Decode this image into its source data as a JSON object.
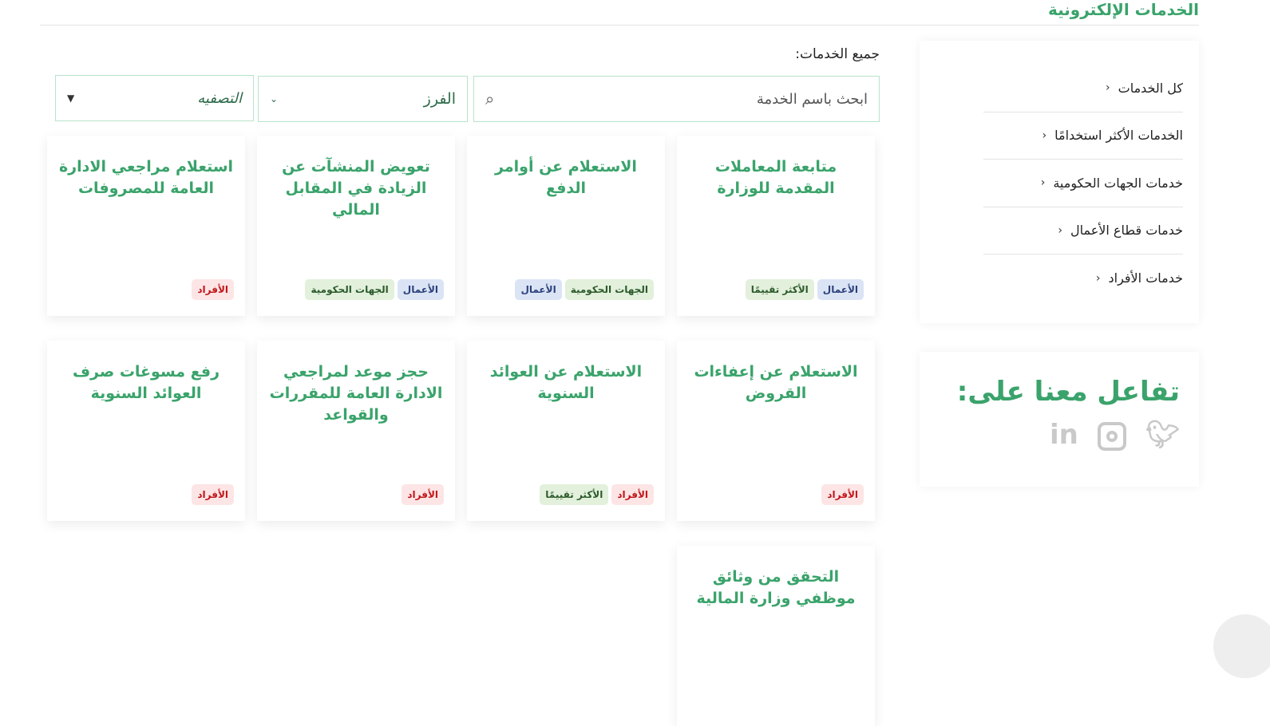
{
  "header": {
    "title": "الخدمات الإلكترونية"
  },
  "sidebar": {
    "items": [
      {
        "label": "كل الخدمات"
      },
      {
        "label": "الخدمات الأكثر استخدامًا"
      },
      {
        "label": "خدمات الجهات الحكومية"
      },
      {
        "label": "خدمات قطاع الأعمال"
      },
      {
        "label": "خدمات الأفراد"
      }
    ]
  },
  "social": {
    "title": "تفاعل معنا على:",
    "icons": [
      "twitter-icon",
      "instagram-icon",
      "linkedin-icon"
    ]
  },
  "main": {
    "label": "جميع الخدمات:",
    "search_placeholder": "ابحث باسم الخدمة",
    "sort_label": "الفرز",
    "filter_label": "التصفيه",
    "cards": [
      {
        "title": "متابعة المعاملات المقدمة للوزارة",
        "tags": [
          {
            "t": "الأعمال",
            "c": "blue"
          },
          {
            "t": "الأكثر تقييمًا",
            "c": "green"
          }
        ]
      },
      {
        "title": "الاستعلام عن أوامر الدفع",
        "tags": [
          {
            "t": "الجهات الحكومية",
            "c": "green"
          },
          {
            "t": "الأعمال",
            "c": "blue"
          }
        ]
      },
      {
        "title": "تعويض المنشآت عن الزيادة في المقابل المالي",
        "tags": [
          {
            "t": "الأعمال",
            "c": "blue"
          },
          {
            "t": "الجهات الحكومية",
            "c": "green"
          }
        ]
      },
      {
        "title": "استعلام مراجعي الادارة العامة للمصروفات",
        "tags": [
          {
            "t": "الأفراد",
            "c": "red"
          }
        ]
      },
      {
        "title": "الاستعلام عن إعفاءات القروض",
        "tags": [
          {
            "t": "الأفراد",
            "c": "red"
          }
        ]
      },
      {
        "title": "الاستعلام عن العوائد السنوية",
        "tags": [
          {
            "t": "الأفراد",
            "c": "red"
          },
          {
            "t": "الأكثر تقييمًا",
            "c": "green"
          }
        ]
      },
      {
        "title": "حجز موعد لمراجعي الادارة العامة للمقررات والقواعد",
        "tags": [
          {
            "t": "الأفراد",
            "c": "red"
          }
        ]
      },
      {
        "title": "رفع مسوغات صرف العوائد السنوية",
        "tags": [
          {
            "t": "الأفراد",
            "c": "red"
          }
        ]
      },
      {
        "title": "التحقق من وثائق موظفي وزارة المالية",
        "tags": []
      }
    ]
  }
}
